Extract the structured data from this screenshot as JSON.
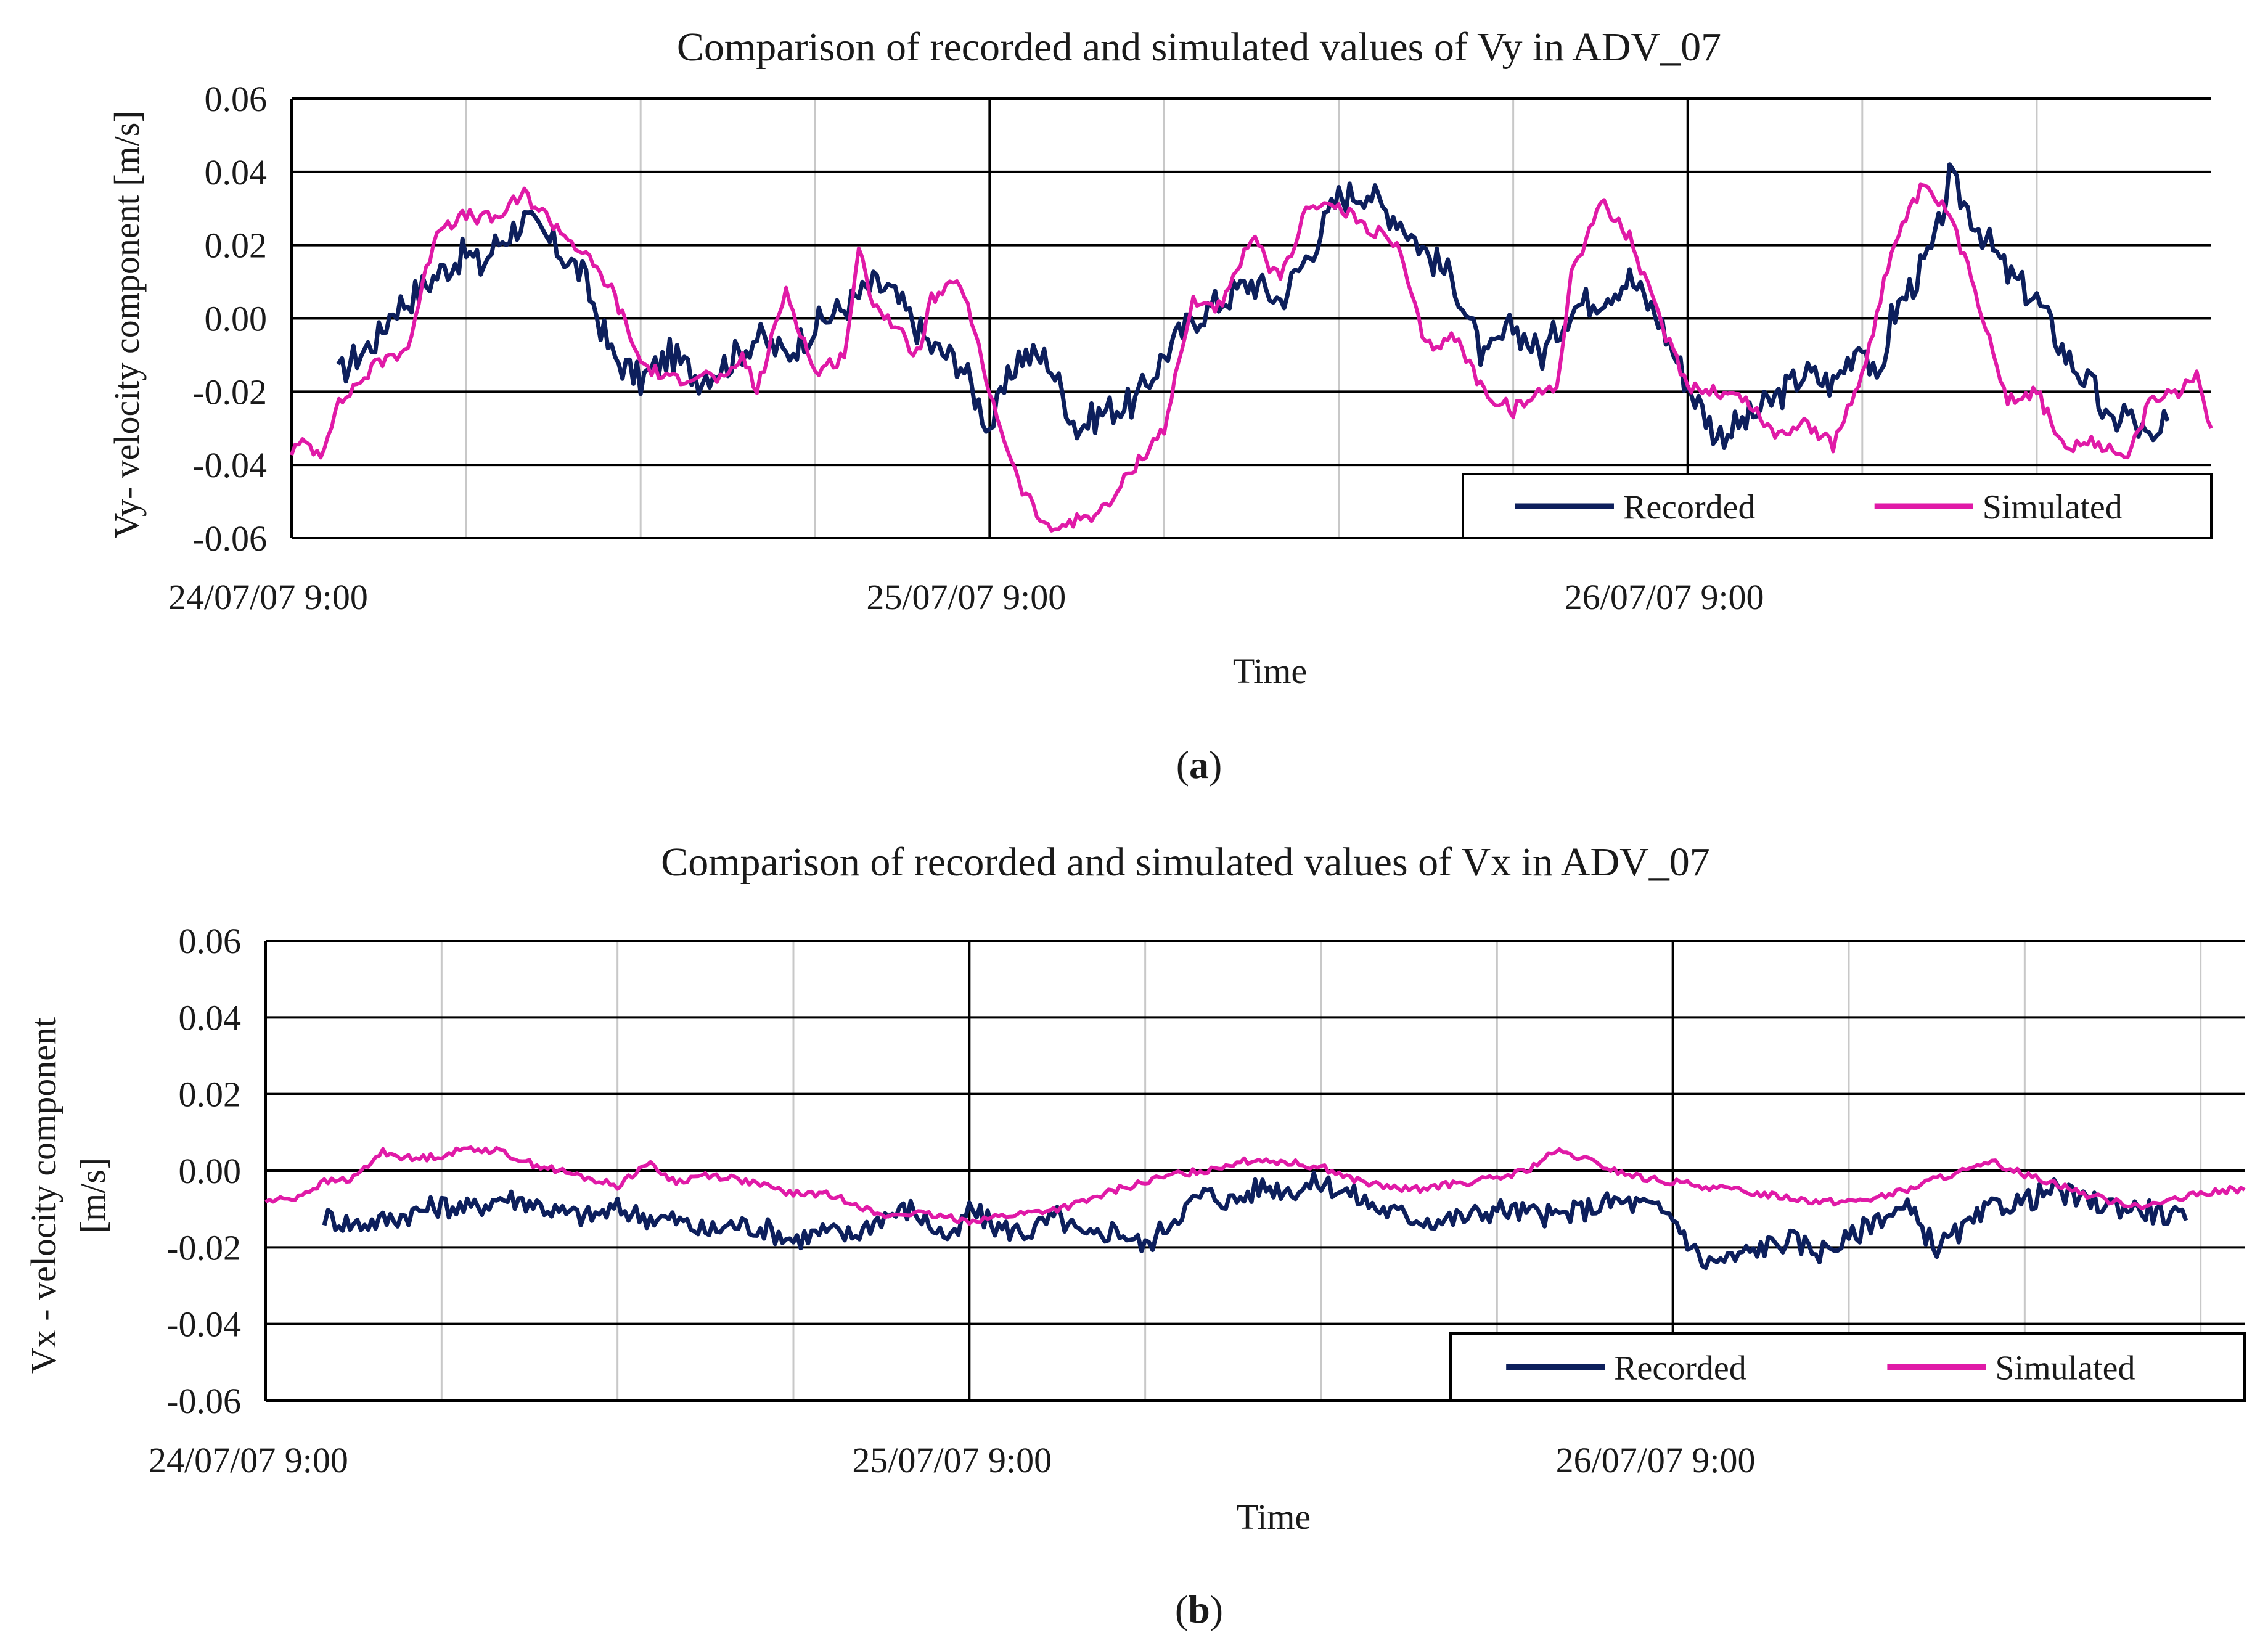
{
  "colors": {
    "recorded": "#0d1f5c",
    "simulated": "#e01aa7",
    "gridMajor": "#000000",
    "gridMinor": "#c8c8c8"
  },
  "chart_data": [
    {
      "type": "line",
      "panel": "(a)",
      "panel_label": "a",
      "title": "Comparison of recorded and simulated values of Vy in ADV_07",
      "xlabel": "Time",
      "ylabel": "Vy- velocity component [m/s]",
      "ylabel_lines": [
        "Vy- velocity component [m/s]"
      ],
      "ylim": [
        -0.06,
        0.06
      ],
      "yticks": [
        "0.06",
        "0.04",
        "0.02",
        "0.00",
        "-0.02",
        "-0.04",
        "-0.06"
      ],
      "xlim_hours": [
        0,
        66
      ],
      "xticks": [
        {
          "h": 0,
          "label": "24/07/07 9:00"
        },
        {
          "h": 24,
          "label": "25/07/07 9:00"
        },
        {
          "h": 48,
          "label": "26/07/07 9:00"
        }
      ],
      "legend": [
        "Recorded",
        "Simulated"
      ],
      "legend_position": "bottom-right",
      "series": [
        {
          "name": "Recorded",
          "x_hours": [
            1.6,
            2,
            3,
            3.5,
            4,
            5,
            6,
            6.5,
            7,
            8,
            9,
            9.5,
            10,
            11,
            12,
            13,
            14,
            15,
            16,
            17,
            18,
            19,
            20,
            20.5,
            21,
            22,
            23,
            24,
            25,
            26,
            27,
            28,
            29,
            30,
            31,
            32,
            33,
            34,
            35,
            36,
            37,
            37.5,
            38,
            39,
            40,
            41,
            42,
            43,
            44,
            45,
            46,
            47,
            48,
            49,
            50,
            51,
            52,
            53,
            54,
            54.5,
            55,
            56,
            56.5,
            57,
            58,
            59,
            60,
            61,
            62,
            62.5,
            63,
            64,
            64.5
          ],
          "values": [
            -0.016,
            -0.012,
            -0.005,
            0.003,
            0.005,
            0.012,
            0.018,
            0.014,
            0.02,
            0.027,
            0.02,
            0.016,
            0.012,
            -0.01,
            -0.017,
            -0.01,
            -0.016,
            -0.012,
            -0.005,
            -0.01,
            -0.002,
            0.003,
            0.009,
            0.008,
            0.003,
            -0.008,
            -0.012,
            -0.03,
            -0.01,
            -0.011,
            -0.03,
            -0.025,
            -0.023,
            -0.01,
            0.0,
            0.005,
            0.01,
            0.005,
            0.018,
            0.033,
            0.035,
            0.03,
            0.028,
            0.018,
            0.01,
            -0.012,
            -0.002,
            -0.01,
            0.003,
            0.006,
            0.011,
            0.0,
            -0.018,
            -0.032,
            -0.028,
            -0.022,
            -0.015,
            -0.018,
            -0.005,
            -0.02,
            0.0,
            0.013,
            0.02,
            0.038,
            0.025,
            0.012,
            0.005,
            -0.01,
            -0.02,
            -0.03,
            -0.025,
            -0.035,
            -0.028
          ]
        },
        {
          "name": "Simulated",
          "x_hours": [
            0,
            0.5,
            1,
            1.5,
            2,
            3,
            4,
            5,
            6,
            7,
            8,
            9,
            10,
            11,
            12,
            13,
            14,
            15,
            15.5,
            16,
            17,
            18,
            19,
            19.5,
            20,
            21,
            21.5,
            22,
            23,
            24,
            25,
            26,
            27,
            28,
            29,
            30,
            31,
            32,
            33,
            34,
            35,
            36,
            37,
            38,
            39,
            40,
            41,
            42,
            43,
            43.5,
            44,
            45,
            46,
            47,
            48,
            49,
            50,
            51,
            52,
            53,
            54,
            55,
            56,
            56.5,
            57,
            58,
            59,
            60,
            61,
            62,
            63,
            64,
            65,
            65.5,
            66
          ],
          "values": [
            -0.036,
            -0.034,
            -0.037,
            -0.025,
            -0.02,
            -0.012,
            -0.008,
            0.025,
            0.028,
            0.027,
            0.034,
            0.026,
            0.018,
            0.008,
            -0.012,
            -0.017,
            -0.015,
            -0.017,
            -0.01,
            -0.02,
            0.008,
            -0.015,
            -0.01,
            0.018,
            0.005,
            -0.005,
            -0.01,
            0.005,
            0.01,
            -0.02,
            -0.045,
            -0.058,
            -0.055,
            -0.052,
            -0.04,
            -0.03,
            0.005,
            0.003,
            0.022,
            0.01,
            0.032,
            0.03,
            0.025,
            0.02,
            -0.008,
            -0.005,
            -0.02,
            -0.025,
            -0.02,
            -0.018,
            0.012,
            0.032,
            0.022,
            0.0,
            -0.018,
            -0.02,
            -0.022,
            -0.032,
            -0.028,
            -0.035,
            -0.015,
            0.018,
            0.035,
            0.033,
            0.028,
            0.005,
            -0.022,
            -0.02,
            -0.036,
            -0.034,
            -0.038,
            -0.022,
            -0.02,
            -0.015,
            -0.03
          ]
        }
      ]
    },
    {
      "type": "line",
      "panel": "(b)",
      "panel_label": "b",
      "title": "Comparison of recorded and simulated values of Vx in ADV_07",
      "xlabel": "Time",
      "ylabel": "Vx - velocity component [m/s]",
      "ylabel_lines": [
        "Vx -  velocity component",
        "[m/s]"
      ],
      "ylim": [
        -0.06,
        0.06
      ],
      "yticks": [
        "0.06",
        "0.04",
        "0.02",
        "0.00",
        "-0.02",
        "-0.04",
        "-0.06"
      ],
      "xlim_hours": [
        0,
        67.5
      ],
      "xticks": [
        {
          "h": 0,
          "label": "24/07/07 9:00"
        },
        {
          "h": 24,
          "label": "25/07/07 9:00"
        },
        {
          "h": 48,
          "label": "26/07/07 9:00"
        }
      ],
      "legend": [
        "Recorded",
        "Simulated"
      ],
      "legend_position": "bottom-right",
      "series": [
        {
          "name": "Recorded",
          "x_hours": [
            2,
            3,
            4,
            5,
            6,
            7,
            8,
            9,
            10,
            11,
            12,
            13,
            14,
            15,
            16,
            17,
            18,
            19,
            20,
            21,
            22,
            23,
            23.5,
            24,
            25,
            26,
            27,
            28,
            29,
            30,
            31,
            32,
            33,
            34,
            35,
            36,
            37,
            38,
            39,
            40,
            41,
            42,
            43,
            44,
            45,
            46,
            47,
            48,
            49,
            50,
            51,
            52,
            53,
            54,
            55,
            56,
            57,
            58,
            59,
            60,
            61,
            62,
            63,
            64,
            65,
            65.5
          ],
          "values": [
            -0.012,
            -0.014,
            -0.013,
            -0.011,
            -0.009,
            -0.01,
            -0.007,
            -0.008,
            -0.011,
            -0.012,
            -0.01,
            -0.012,
            -0.013,
            -0.016,
            -0.014,
            -0.015,
            -0.018,
            -0.016,
            -0.017,
            -0.012,
            -0.01,
            -0.016,
            -0.018,
            -0.01,
            -0.015,
            -0.016,
            -0.012,
            -0.018,
            -0.015,
            -0.02,
            -0.012,
            -0.006,
            -0.008,
            -0.004,
            -0.005,
            -0.003,
            -0.006,
            -0.01,
            -0.012,
            -0.013,
            -0.012,
            -0.01,
            -0.011,
            -0.012,
            -0.01,
            -0.008,
            -0.009,
            -0.012,
            -0.024,
            -0.023,
            -0.02,
            -0.018,
            -0.021,
            -0.018,
            -0.012,
            -0.01,
            -0.02,
            -0.015,
            -0.009,
            -0.008,
            -0.005,
            -0.008,
            -0.009,
            -0.01,
            -0.012,
            -0.013
          ]
        },
        {
          "name": "Simulated",
          "x_hours": [
            0,
            1,
            2,
            3,
            4,
            5,
            6,
            7,
            8,
            9,
            10,
            11,
            12,
            13,
            14,
            15,
            16,
            17,
            18,
            19,
            20,
            21,
            22,
            23,
            24,
            25,
            26,
            27,
            28,
            29,
            30,
            31,
            32,
            33,
            34,
            35,
            36,
            37,
            38,
            39,
            40,
            41,
            42,
            43,
            44,
            45,
            46,
            47,
            48,
            49,
            50,
            51,
            52,
            53,
            54,
            55,
            56,
            57,
            58,
            59,
            60,
            61,
            62,
            63,
            64,
            65,
            66,
            67,
            67.5
          ],
          "values": [
            -0.008,
            -0.007,
            -0.003,
            -0.002,
            0.005,
            0.003,
            0.004,
            0.006,
            0.005,
            0.002,
            0.0,
            -0.002,
            -0.004,
            0.002,
            -0.003,
            -0.001,
            -0.002,
            -0.004,
            -0.006,
            -0.006,
            -0.008,
            -0.012,
            -0.011,
            -0.012,
            -0.013,
            -0.012,
            -0.011,
            -0.01,
            -0.008,
            -0.005,
            -0.003,
            -0.001,
            0.0,
            0.002,
            0.003,
            0.002,
            0.001,
            -0.002,
            -0.004,
            -0.005,
            -0.004,
            -0.003,
            -0.002,
            0.0,
            0.005,
            0.003,
            0.0,
            -0.002,
            -0.003,
            -0.004,
            -0.005,
            -0.006,
            -0.007,
            -0.008,
            -0.008,
            -0.007,
            -0.005,
            -0.002,
            0.0,
            0.002,
            -0.001,
            -0.003,
            -0.006,
            -0.008,
            -0.009,
            -0.008,
            -0.006,
            -0.005,
            -0.005
          ]
        }
      ]
    }
  ]
}
